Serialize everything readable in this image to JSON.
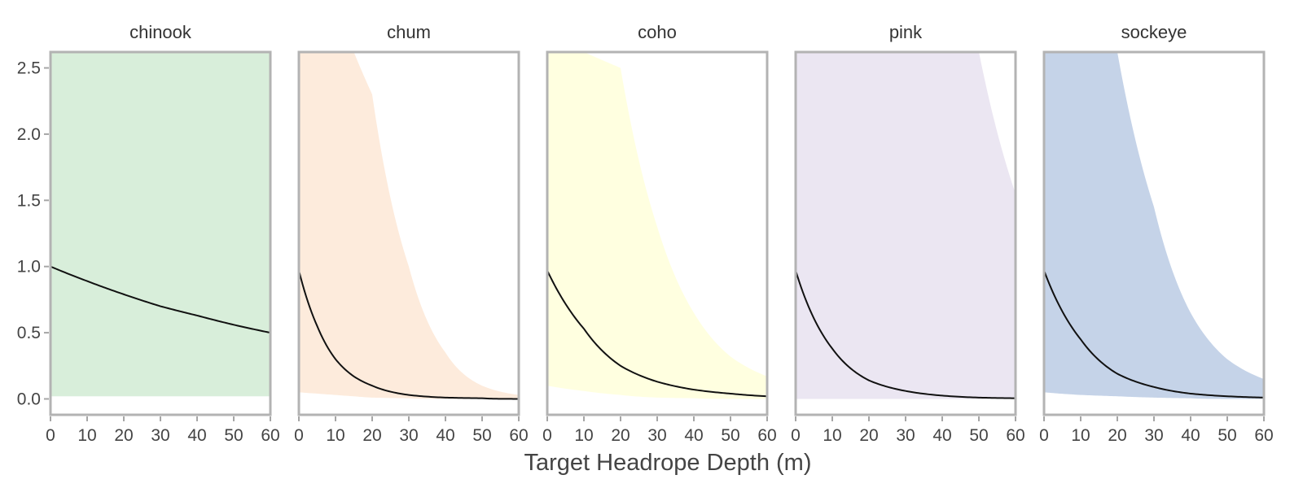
{
  "chart_data": {
    "type": "line",
    "xlabel": "Target Headrope Depth (m)",
    "ylabel": "",
    "xlim": [
      0,
      60
    ],
    "ylim": [
      -0.12,
      2.62
    ],
    "x_ticks": [
      0,
      10,
      20,
      30,
      40,
      50,
      60
    ],
    "x_tick_labels": [
      "0",
      "10",
      "20",
      "30",
      "40",
      "50",
      "60"
    ],
    "y_ticks": [
      0.0,
      0.5,
      1.0,
      1.5,
      2.0,
      2.5
    ],
    "y_tick_labels": [
      "0.0",
      "0.5",
      "1.0",
      "1.5",
      "2.0",
      "2.5"
    ],
    "grid": false,
    "panels": [
      {
        "title": "chinook",
        "fill_color": "#d8eeda",
        "x": [
          0,
          10,
          20,
          30,
          40,
          50,
          60
        ],
        "y": [
          1.0,
          0.89,
          0.79,
          0.7,
          0.63,
          0.56,
          0.5
        ],
        "lower": [
          0.02,
          0.02,
          0.02,
          0.02,
          0.02,
          0.02,
          0.02
        ],
        "upper": [
          2.62,
          2.62,
          2.62,
          2.62,
          2.62,
          2.62,
          2.62
        ]
      },
      {
        "title": "chum",
        "fill_color": "#fdebdc",
        "x": [
          0,
          5,
          10,
          15,
          20,
          30,
          40,
          50,
          60
        ],
        "y": [
          0.97,
          0.55,
          0.3,
          0.17,
          0.1,
          0.03,
          0.01,
          0.005,
          0.0
        ],
        "lower": [
          0.05,
          0.04,
          0.03,
          0.02,
          0.01,
          0.005,
          0.0,
          0.0,
          0.0
        ],
        "upper": [
          2.62,
          2.62,
          2.62,
          2.62,
          2.3,
          1.0,
          0.35,
          0.1,
          0.03
        ]
      },
      {
        "title": "coho",
        "fill_color": "#ffffe0",
        "x": [
          0,
          10,
          20,
          30,
          40,
          50,
          60
        ],
        "y": [
          0.97,
          0.53,
          0.25,
          0.13,
          0.07,
          0.04,
          0.02
        ],
        "lower": [
          0.1,
          0.06,
          0.03,
          0.01,
          0.005,
          0.0,
          0.0
        ],
        "upper": [
          2.62,
          2.62,
          2.5,
          1.3,
          0.65,
          0.32,
          0.17
        ]
      },
      {
        "title": "pink",
        "fill_color": "#ebe6f2",
        "x": [
          0,
          10,
          20,
          30,
          40,
          50,
          60
        ],
        "y": [
          0.97,
          0.38,
          0.14,
          0.06,
          0.025,
          0.01,
          0.005
        ],
        "lower": [
          0.0,
          0.0,
          0.0,
          0.0,
          0.0,
          0.0,
          0.0
        ],
        "upper": [
          2.62,
          2.62,
          2.62,
          2.62,
          2.62,
          2.62,
          1.55
        ]
      },
      {
        "title": "sockeye",
        "fill_color": "#c5d3e8",
        "x": [
          0,
          10,
          20,
          30,
          40,
          50,
          60
        ],
        "y": [
          0.97,
          0.45,
          0.19,
          0.09,
          0.04,
          0.02,
          0.01
        ],
        "lower": [
          0.05,
          0.03,
          0.02,
          0.01,
          0.005,
          0.0,
          0.0
        ],
        "upper": [
          2.62,
          2.62,
          2.62,
          1.45,
          0.65,
          0.3,
          0.15
        ]
      }
    ]
  }
}
